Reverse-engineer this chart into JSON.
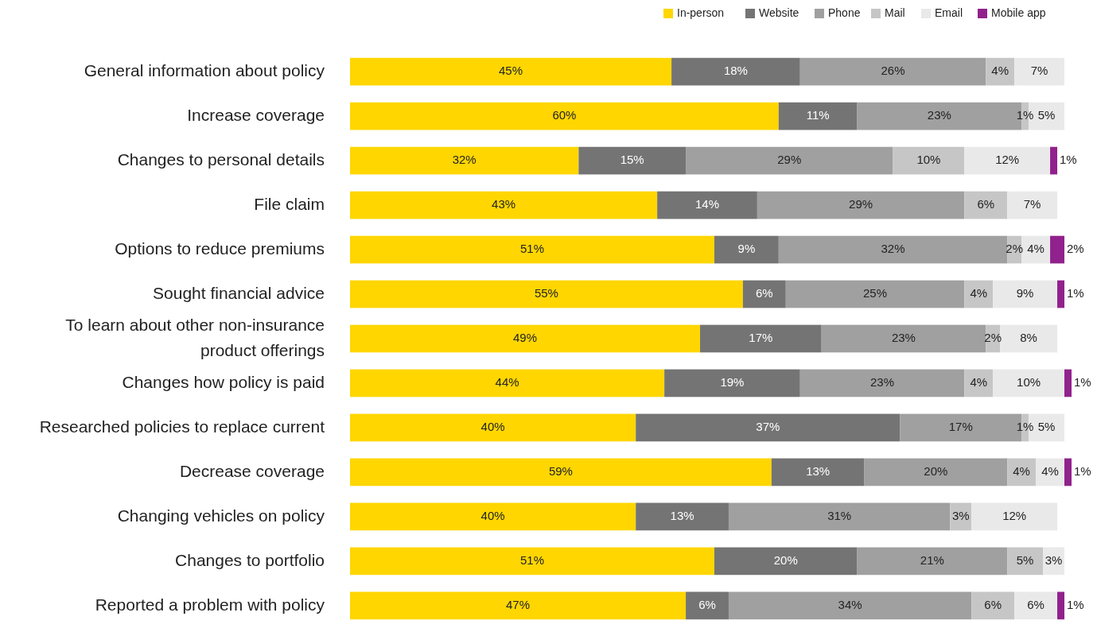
{
  "chart_data": {
    "type": "bar",
    "orientation": "horizontal",
    "stacked": true,
    "legend": "top right",
    "tick_labels": "y",
    "xlim": [
      0,
      101
    ],
    "categories": [
      "General information about policy",
      "Increase coverage",
      "Changes to personal details",
      "File claim",
      "Options to reduce premiums",
      "Sought financial advice",
      "To learn about other non-insurance product offerings",
      "Changes how policy is paid",
      "Researched policies to replace current",
      "Decrease coverage",
      "Changing vehicles on policy",
      "Changes to portfolio",
      "Reported a problem with policy"
    ],
    "series": [
      {
        "name": "In-person",
        "color": "#ffd600",
        "values": [
          45,
          60,
          32,
          43,
          51,
          55,
          49,
          44,
          40,
          59,
          40,
          51,
          47
        ],
        "value_labels": [
          "45%",
          "60%",
          "32%",
          "43%",
          "51%",
          "55%",
          "49%",
          "44%",
          "40%",
          "59%",
          "40%",
          "51%",
          "47%"
        ]
      },
      {
        "name": "Website",
        "color": "#747474",
        "values": [
          18,
          11,
          15,
          14,
          9,
          6,
          17,
          19,
          37,
          13,
          13,
          20,
          6
        ],
        "value_labels": [
          "18%",
          "11%",
          "15%",
          "14%",
          "9%",
          "6%",
          "17%",
          "19%",
          "37%",
          "13%",
          "13%",
          "20%",
          "6%"
        ]
      },
      {
        "name": "Phone",
        "color": "#a0a0a0",
        "values": [
          26,
          23,
          29,
          29,
          32,
          25,
          23,
          23,
          17,
          20,
          31,
          21,
          34
        ],
        "value_labels": [
          "26%",
          "23%",
          "29%",
          "29%",
          "32%",
          "25%",
          "23%",
          "23%",
          "17%",
          "20%",
          "31%",
          "21%",
          "34%"
        ]
      },
      {
        "name": "Mail",
        "color": "#c6c6c6",
        "values": [
          4,
          1,
          10,
          6,
          2,
          4,
          2,
          4,
          1,
          4,
          3,
          5,
          6
        ],
        "value_labels": [
          "4%",
          "1%",
          "10%",
          "6%",
          "2%",
          "4%",
          "2%",
          "4%",
          "1%",
          "4%",
          "3%",
          "5%",
          "6%"
        ]
      },
      {
        "name": "Email",
        "color": "#e9e9e9",
        "values": [
          7,
          5,
          12,
          7,
          4,
          9,
          8,
          10,
          5,
          4,
          12,
          3,
          6
        ],
        "value_labels": [
          "7%",
          "5%",
          "12%",
          "7%",
          "4%",
          "9%",
          "8%",
          "10%",
          "5%",
          "4%",
          "12%",
          "3%",
          "6%"
        ]
      },
      {
        "name": "Mobile app",
        "color": "#91218c",
        "values": [
          null,
          null,
          1,
          null,
          2,
          1,
          null,
          1,
          null,
          1,
          null,
          null,
          1
        ],
        "value_labels": [
          null,
          null,
          "1%",
          null,
          "2%",
          "1%",
          null,
          "1%",
          null,
          "1%",
          null,
          null,
          "1%"
        ]
      }
    ]
  }
}
